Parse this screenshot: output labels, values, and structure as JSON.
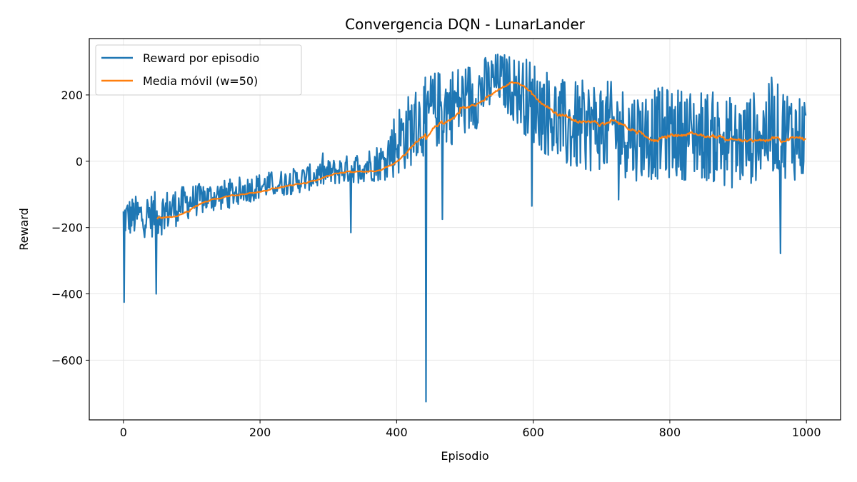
{
  "chart_data": {
    "type": "line",
    "title": "Convergencia DQN - LunarLander",
    "xlabel": "Episodio",
    "ylabel": "Reward",
    "xlim": [
      -50,
      1050
    ],
    "ylim": [
      -780,
      370
    ],
    "x_ticks": [
      0,
      200,
      400,
      600,
      800,
      1000
    ],
    "x_tick_labels": [
      "0",
      "200",
      "400",
      "600",
      "800",
      "1000"
    ],
    "y_ticks": [
      -600,
      -400,
      -200,
      0,
      200
    ],
    "y_tick_labels": [
      "−600",
      "−400",
      "−200",
      "0",
      "200"
    ],
    "grid": true,
    "legend_position": "top-left",
    "episodes": 1000,
    "series": [
      {
        "name": "Reward por episodio",
        "color": "#1f77b4",
        "approx_trend_x": [
          0,
          50,
          100,
          150,
          200,
          250,
          300,
          340,
          380,
          400,
          450,
          500,
          550,
          600,
          650,
          700,
          750,
          800,
          850,
          900,
          950,
          999
        ],
        "approx_trend_y": [
          -170,
          -160,
          -120,
          -100,
          -75,
          -60,
          -35,
          -20,
          0,
          60,
          150,
          180,
          250,
          180,
          100,
          110,
          80,
          85,
          80,
          50,
          100,
          70
        ],
        "spread": [
          60,
          70,
          50,
          45,
          40,
          40,
          40,
          45,
          60,
          110,
          120,
          120,
          80,
          130,
          140,
          140,
          140,
          140,
          140,
          140,
          140,
          140
        ],
        "notable_points": [
          {
            "x": 1,
            "y": -425
          },
          {
            "x": 48,
            "y": -400
          },
          {
            "x": 333,
            "y": -215
          },
          {
            "x": 443,
            "y": -725
          },
          {
            "x": 467,
            "y": -175
          },
          {
            "x": 598,
            "y": -135
          },
          {
            "x": 962,
            "y": -278
          }
        ]
      },
      {
        "name": "Media móvil (w=50)",
        "color": "#ff7f0e",
        "window": 50
      }
    ]
  }
}
